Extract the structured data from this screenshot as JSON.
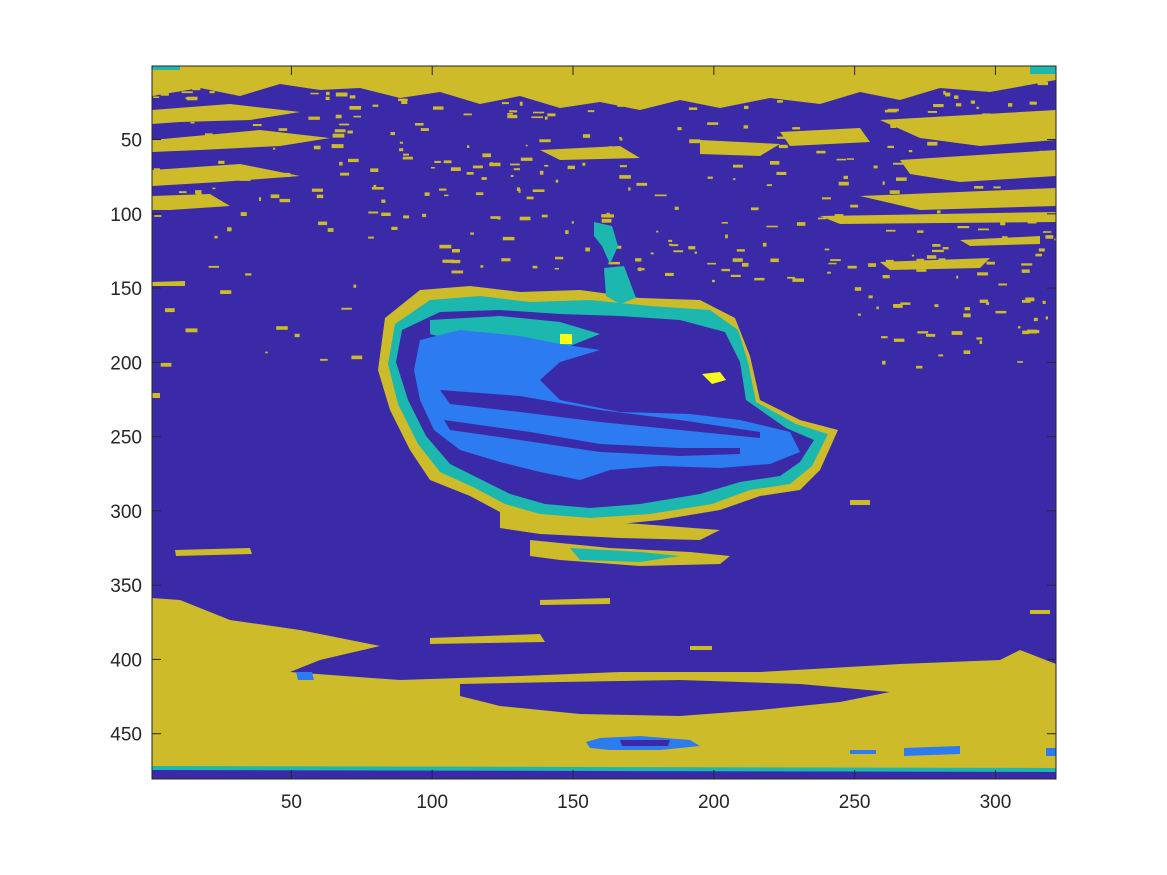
{
  "chart_data": {
    "type": "heatmap",
    "title": "",
    "xlabel": "",
    "ylabel": "",
    "image_size": [
      321,
      480
    ],
    "xlim": [
      0.5,
      321.5
    ],
    "ylim": [
      0.5,
      480.5
    ],
    "y_direction": "reverse",
    "x_ticks": [
      50,
      100,
      150,
      200,
      250,
      300
    ],
    "x_tick_labels": [
      "50",
      "100",
      "150",
      "200",
      "250",
      "300"
    ],
    "y_ticks": [
      50,
      100,
      150,
      200,
      250,
      300,
      350,
      400,
      450
    ],
    "y_tick_labels": [
      "50",
      "100",
      "150",
      "200",
      "250",
      "300",
      "350",
      "400",
      "450"
    ],
    "classes": [
      {
        "value": 1,
        "color": "#3b2aa8"
      },
      {
        "value": 2,
        "color": "#2c7bf0"
      },
      {
        "value": 3,
        "color": "#1cb8b0"
      },
      {
        "value": 4,
        "color": "#cdbb29"
      },
      {
        "value": 5,
        "color": "#f9f91b"
      }
    ],
    "grid": false,
    "legend": "none"
  }
}
